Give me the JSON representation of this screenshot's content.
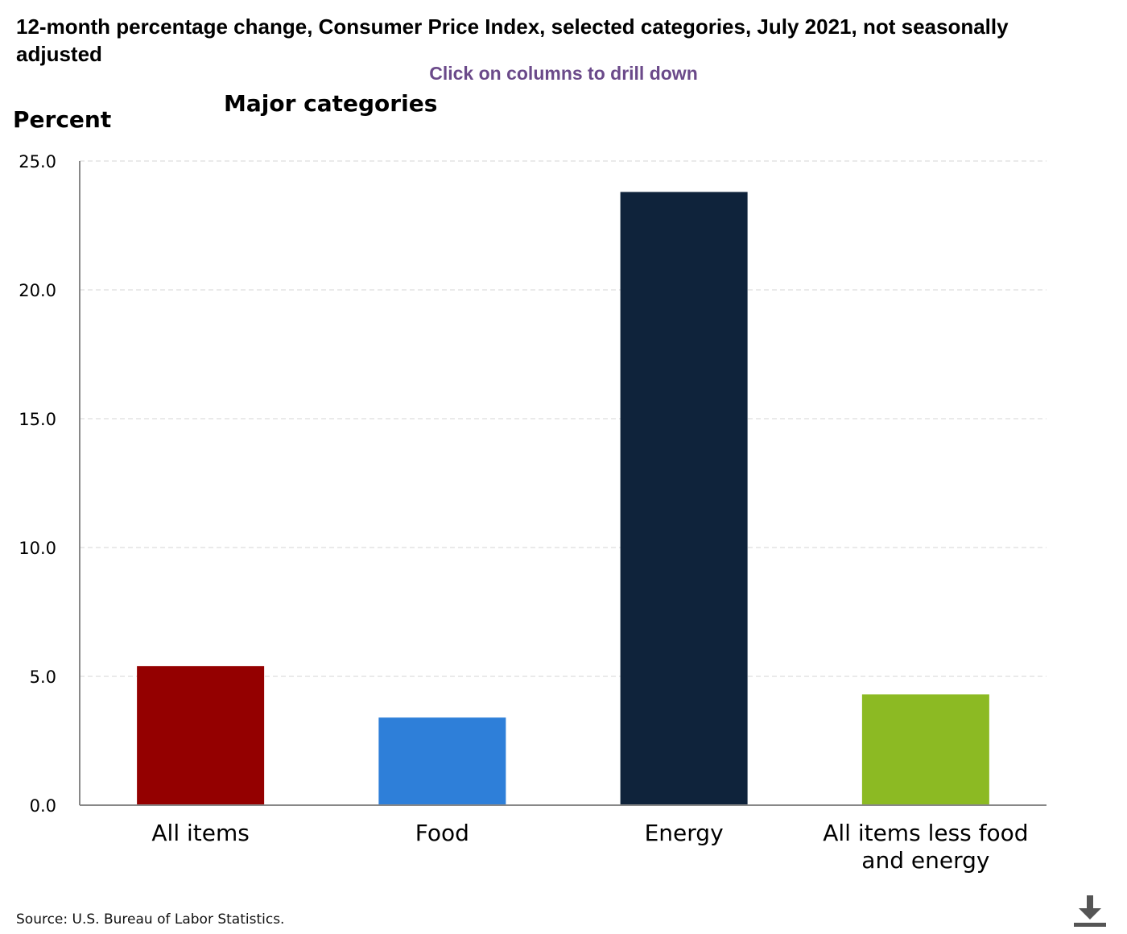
{
  "header": {
    "title": "12-month percentage change, Consumer Price Index, selected categories, July 2021, not seasonally adjusted",
    "drill_hint": "Click on columns to drill down"
  },
  "footer": {
    "source": "Source: U.S. Bureau of Labor Statistics."
  },
  "icons": {
    "download": "download-icon"
  },
  "chart_data": {
    "type": "bar",
    "title": "Major categories",
    "ylabel": "Percent",
    "xlabel": "",
    "ylim": [
      0,
      25
    ],
    "yticks": [
      "0.0",
      "5.0",
      "10.0",
      "15.0",
      "20.0",
      "25.0"
    ],
    "ytick_values": [
      0,
      5,
      10,
      15,
      20,
      25
    ],
    "grid": true,
    "categories": [
      [
        "All items"
      ],
      [
        "Food"
      ],
      [
        "Energy"
      ],
      [
        "All items less food",
        "and energy"
      ]
    ],
    "values": [
      5.4,
      3.4,
      23.8,
      4.3
    ],
    "colors": [
      "#940000",
      "#2e7fd9",
      "#0f233b",
      "#8cba23"
    ]
  }
}
